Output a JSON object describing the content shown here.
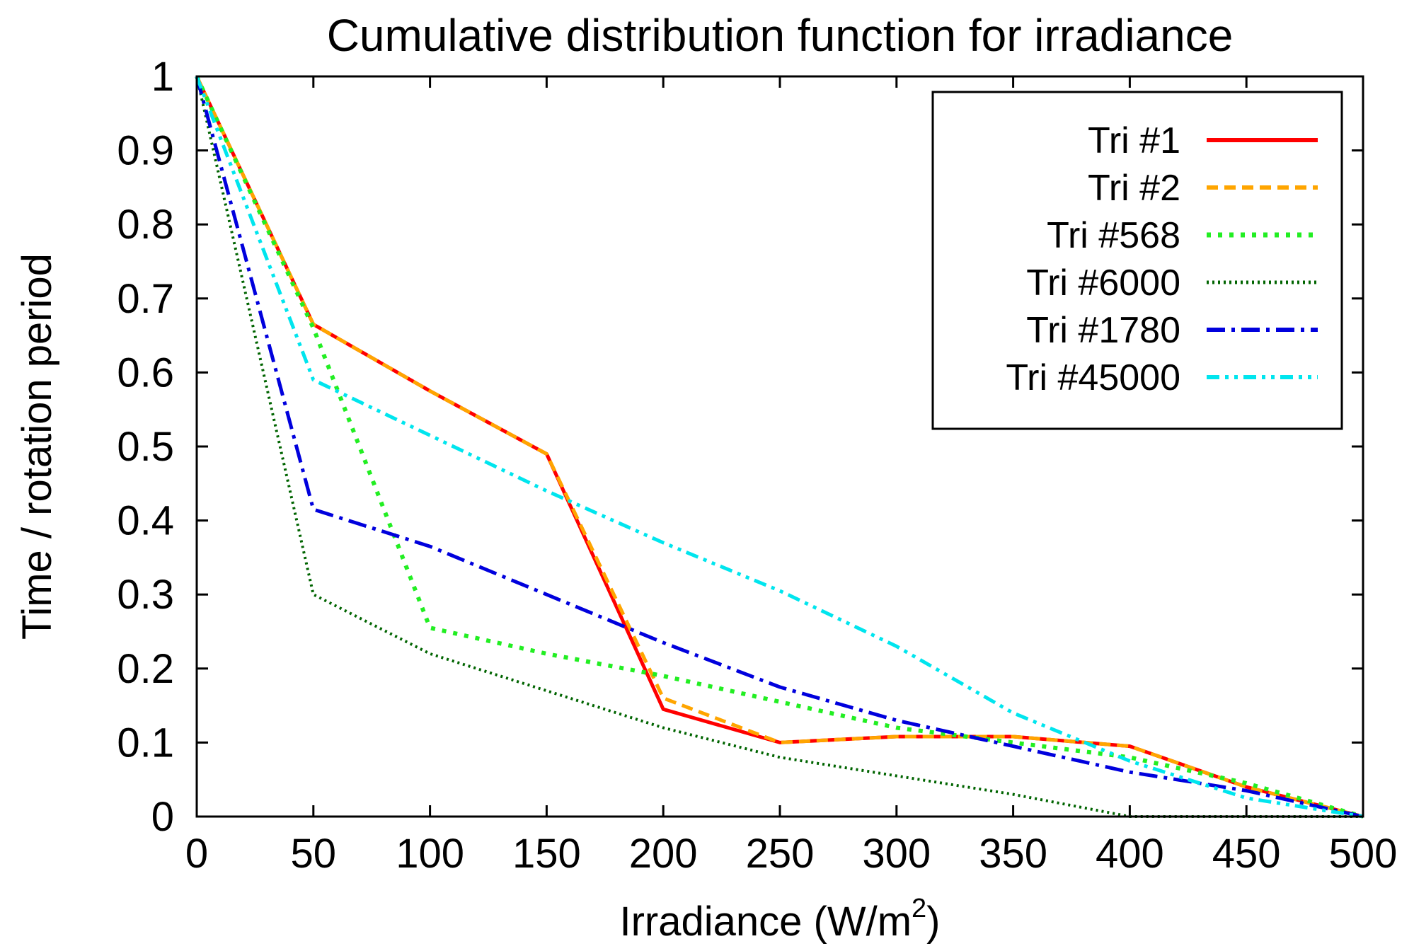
{
  "chart_data": {
    "type": "line",
    "title": "Cumulative distribution function for irradiance",
    "xlabel": "Irradiance (W/m",
    "xlabel_sup": "2",
    "xlabel_close": ")",
    "ylabel": "Time / rotation period",
    "xlim": [
      0,
      500
    ],
    "ylim": [
      0,
      1
    ],
    "xticks": [
      0,
      50,
      100,
      150,
      200,
      250,
      300,
      350,
      400,
      450,
      500
    ],
    "yticks": [
      0,
      0.1,
      0.2,
      0.3,
      0.4,
      0.5,
      0.6,
      0.7,
      0.8,
      0.9,
      1
    ],
    "grid": false,
    "legend_position": "top-right",
    "series": [
      {
        "name": "Tri #1",
        "color": "#ff0000",
        "dash": "solid",
        "x": [
          0,
          50,
          100,
          150,
          200,
          250,
          300,
          350,
          400,
          450,
          500
        ],
        "y": [
          1.0,
          0.665,
          0.575,
          0.49,
          0.145,
          0.1,
          0.108,
          0.108,
          0.095,
          0.04,
          0.0
        ]
      },
      {
        "name": "Tri #2",
        "color": "#ffa500",
        "dash": "dashed",
        "x": [
          0,
          50,
          100,
          150,
          200,
          250,
          300,
          350,
          400,
          450,
          500
        ],
        "y": [
          1.0,
          0.665,
          0.575,
          0.49,
          0.16,
          0.1,
          0.108,
          0.108,
          0.095,
          0.04,
          0.0
        ]
      },
      {
        "name": "Tri #568",
        "color": "#22ee22",
        "dash": "dotted",
        "x": [
          0,
          50,
          100,
          150,
          200,
          250,
          300,
          350,
          400,
          450,
          500
        ],
        "y": [
          1.0,
          0.66,
          0.255,
          0.22,
          0.19,
          0.155,
          0.12,
          0.1,
          0.08,
          0.045,
          0.0
        ]
      },
      {
        "name": "Tri #6000",
        "color": "#006400",
        "dash": "fine-dotted",
        "x": [
          0,
          50,
          100,
          150,
          200,
          250,
          300,
          350,
          400,
          450,
          500
        ],
        "y": [
          1.0,
          0.3,
          0.22,
          0.17,
          0.12,
          0.08,
          0.055,
          0.03,
          0.0,
          0.0,
          0.0
        ]
      },
      {
        "name": "Tri #1780",
        "color": "#0000dd",
        "dash": "dash-dot",
        "x": [
          0,
          50,
          100,
          150,
          200,
          250,
          300,
          350,
          400,
          450,
          500
        ],
        "y": [
          1.0,
          0.415,
          0.365,
          0.3,
          0.235,
          0.175,
          0.13,
          0.095,
          0.06,
          0.035,
          0.0
        ]
      },
      {
        "name": "Tri #45000",
        "color": "#00e5ee",
        "dash": "dash-dot-dot",
        "x": [
          0,
          50,
          100,
          150,
          200,
          250,
          300,
          350,
          400,
          450,
          500
        ],
        "y": [
          1.0,
          0.59,
          0.515,
          0.44,
          0.37,
          0.305,
          0.23,
          0.14,
          0.075,
          0.025,
          0.0
        ]
      }
    ]
  }
}
